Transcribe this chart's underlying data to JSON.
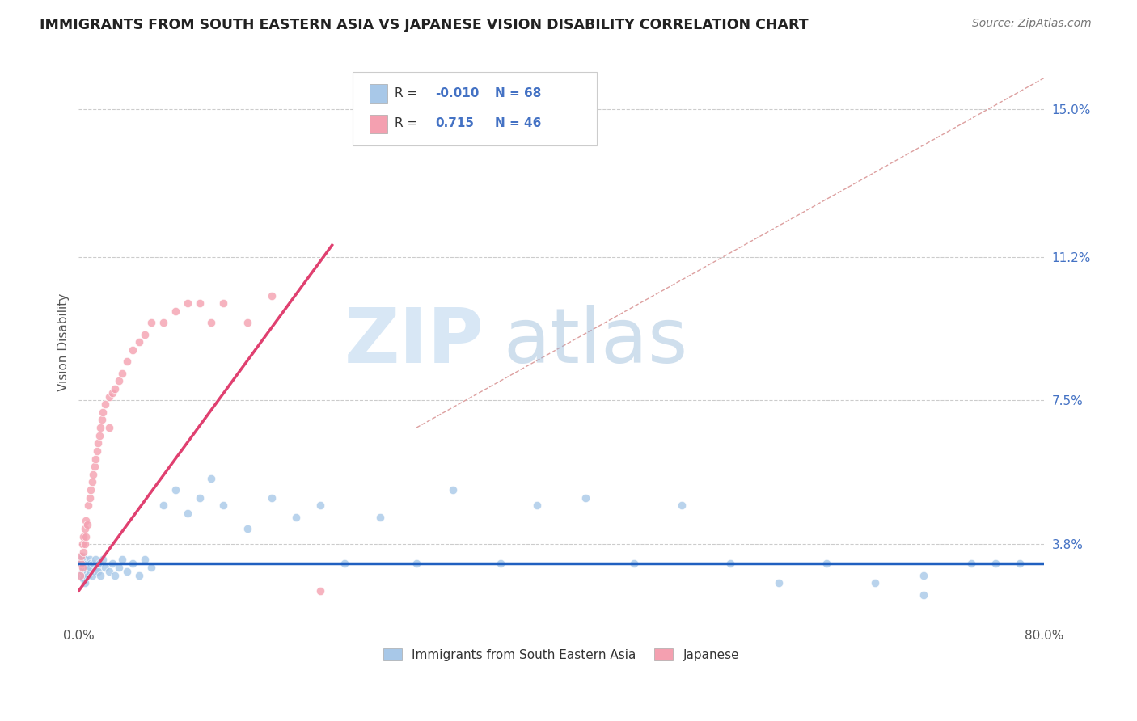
{
  "title": "IMMIGRANTS FROM SOUTH EASTERN ASIA VS JAPANESE VISION DISABILITY CORRELATION CHART",
  "source": "Source: ZipAtlas.com",
  "xlabel": "",
  "ylabel": "Vision Disability",
  "xlim": [
    0.0,
    0.8
  ],
  "ylim": [
    0.018,
    0.162
  ],
  "yticks": [
    0.038,
    0.075,
    0.112,
    0.15
  ],
  "ytick_labels": [
    "3.8%",
    "7.5%",
    "11.2%",
    "15.0%"
  ],
  "xticks": [
    0.0,
    0.1,
    0.2,
    0.3,
    0.4,
    0.5,
    0.6,
    0.7,
    0.8
  ],
  "xtick_labels": [
    "0.0%",
    "",
    "",
    "",
    "",
    "",
    "",
    "",
    "80.0%"
  ],
  "color_blue": "#a8c8e8",
  "color_pink": "#f4a0b0",
  "color_blue_line": "#2060c0",
  "color_pink_line": "#e04070",
  "color_diagonal": "#e8b0c0",
  "blue_scatter_x": [
    0.001,
    0.002,
    0.002,
    0.003,
    0.003,
    0.004,
    0.004,
    0.005,
    0.005,
    0.005,
    0.006,
    0.006,
    0.007,
    0.007,
    0.008,
    0.008,
    0.009,
    0.009,
    0.01,
    0.01,
    0.011,
    0.012,
    0.013,
    0.014,
    0.015,
    0.016,
    0.017,
    0.018,
    0.02,
    0.022,
    0.025,
    0.028,
    0.03,
    0.033,
    0.036,
    0.04,
    0.045,
    0.05,
    0.055,
    0.06,
    0.07,
    0.08,
    0.09,
    0.1,
    0.11,
    0.12,
    0.14,
    0.16,
    0.18,
    0.2,
    0.22,
    0.25,
    0.28,
    0.31,
    0.35,
    0.38,
    0.42,
    0.46,
    0.5,
    0.54,
    0.58,
    0.62,
    0.66,
    0.7,
    0.74,
    0.76,
    0.7,
    0.78
  ],
  "blue_scatter_y": [
    0.033,
    0.03,
    0.034,
    0.031,
    0.035,
    0.032,
    0.029,
    0.033,
    0.031,
    0.028,
    0.034,
    0.03,
    0.033,
    0.031,
    0.032,
    0.03,
    0.034,
    0.031,
    0.033,
    0.032,
    0.03,
    0.033,
    0.031,
    0.034,
    0.032,
    0.031,
    0.033,
    0.03,
    0.034,
    0.032,
    0.031,
    0.033,
    0.03,
    0.032,
    0.034,
    0.031,
    0.033,
    0.03,
    0.034,
    0.032,
    0.048,
    0.052,
    0.046,
    0.05,
    0.055,
    0.048,
    0.042,
    0.05,
    0.045,
    0.048,
    0.033,
    0.045,
    0.033,
    0.052,
    0.033,
    0.048,
    0.05,
    0.033,
    0.048,
    0.033,
    0.028,
    0.033,
    0.028,
    0.03,
    0.033,
    0.033,
    0.025,
    0.033
  ],
  "pink_scatter_x": [
    0.001,
    0.002,
    0.002,
    0.003,
    0.003,
    0.004,
    0.004,
    0.005,
    0.005,
    0.006,
    0.006,
    0.007,
    0.008,
    0.009,
    0.01,
    0.011,
    0.012,
    0.013,
    0.014,
    0.015,
    0.016,
    0.017,
    0.018,
    0.019,
    0.02,
    0.022,
    0.025,
    0.028,
    0.03,
    0.033,
    0.036,
    0.04,
    0.045,
    0.05,
    0.055,
    0.06,
    0.07,
    0.08,
    0.09,
    0.1,
    0.11,
    0.12,
    0.14,
    0.16,
    0.025,
    0.2
  ],
  "pink_scatter_y": [
    0.03,
    0.033,
    0.035,
    0.032,
    0.038,
    0.036,
    0.04,
    0.038,
    0.042,
    0.04,
    0.044,
    0.043,
    0.048,
    0.05,
    0.052,
    0.054,
    0.056,
    0.058,
    0.06,
    0.062,
    0.064,
    0.066,
    0.068,
    0.07,
    0.072,
    0.074,
    0.076,
    0.077,
    0.078,
    0.08,
    0.082,
    0.085,
    0.088,
    0.09,
    0.092,
    0.095,
    0.095,
    0.098,
    0.1,
    0.1,
    0.095,
    0.1,
    0.095,
    0.102,
    0.068,
    0.026
  ],
  "pink_line_x0": 0.0,
  "pink_line_y0": 0.026,
  "pink_line_x1": 0.21,
  "pink_line_y1": 0.115,
  "blue_line_y": 0.033,
  "diag_color": "#dda0a0",
  "watermark_zip": "ZIP",
  "watermark_atlas": "atlas",
  "watermark_color_zip": "#c8ddf0",
  "watermark_color_atlas": "#b0c8e8"
}
